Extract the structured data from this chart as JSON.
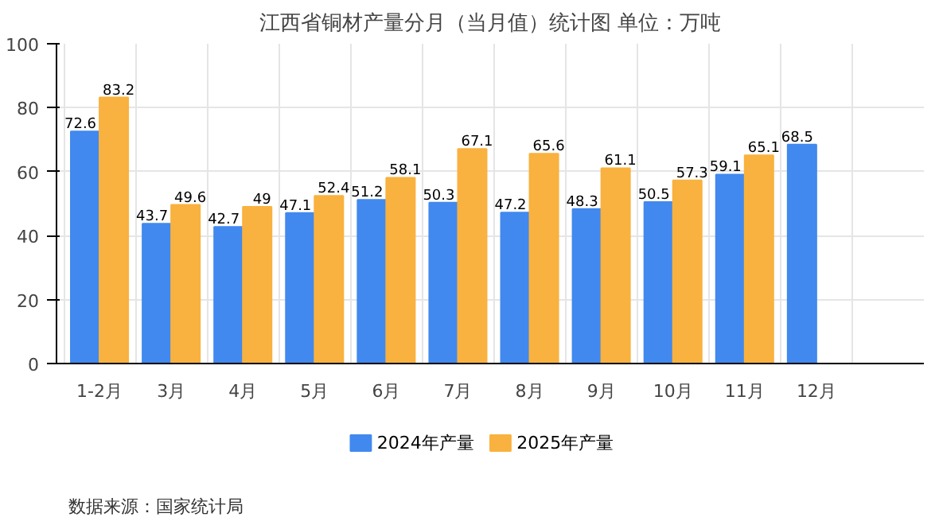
{
  "chart_data": {
    "type": "bar",
    "title": "江西省铜材产量分月（当月值）统计图 单位：万吨",
    "categories": [
      "1-2月",
      "3月",
      "4月",
      "5月",
      "6月",
      "7月",
      "8月",
      "9月",
      "10月",
      "11月",
      "12月",
      null
    ],
    "series": [
      {
        "name": "2024年产量",
        "color": "#4189ee",
        "values": [
          72.6,
          43.7,
          42.7,
          47.1,
          51.2,
          50.3,
          47.2,
          48.3,
          50.5,
          59.1,
          68.5,
          null
        ]
      },
      {
        "name": "2025年产量",
        "color": "#f9b23f",
        "values": [
          83.2,
          49.6,
          49,
          52.4,
          58.1,
          67.1,
          65.6,
          61.1,
          57.3,
          65.1,
          null,
          null
        ]
      }
    ],
    "ylim": [
      0,
      100
    ],
    "yticks": [
      0,
      20,
      40,
      60,
      80,
      100
    ],
    "grid": true,
    "legend": "bottom",
    "data_labels": true,
    "annotations": [
      "数据来源：国家统计局"
    ]
  }
}
